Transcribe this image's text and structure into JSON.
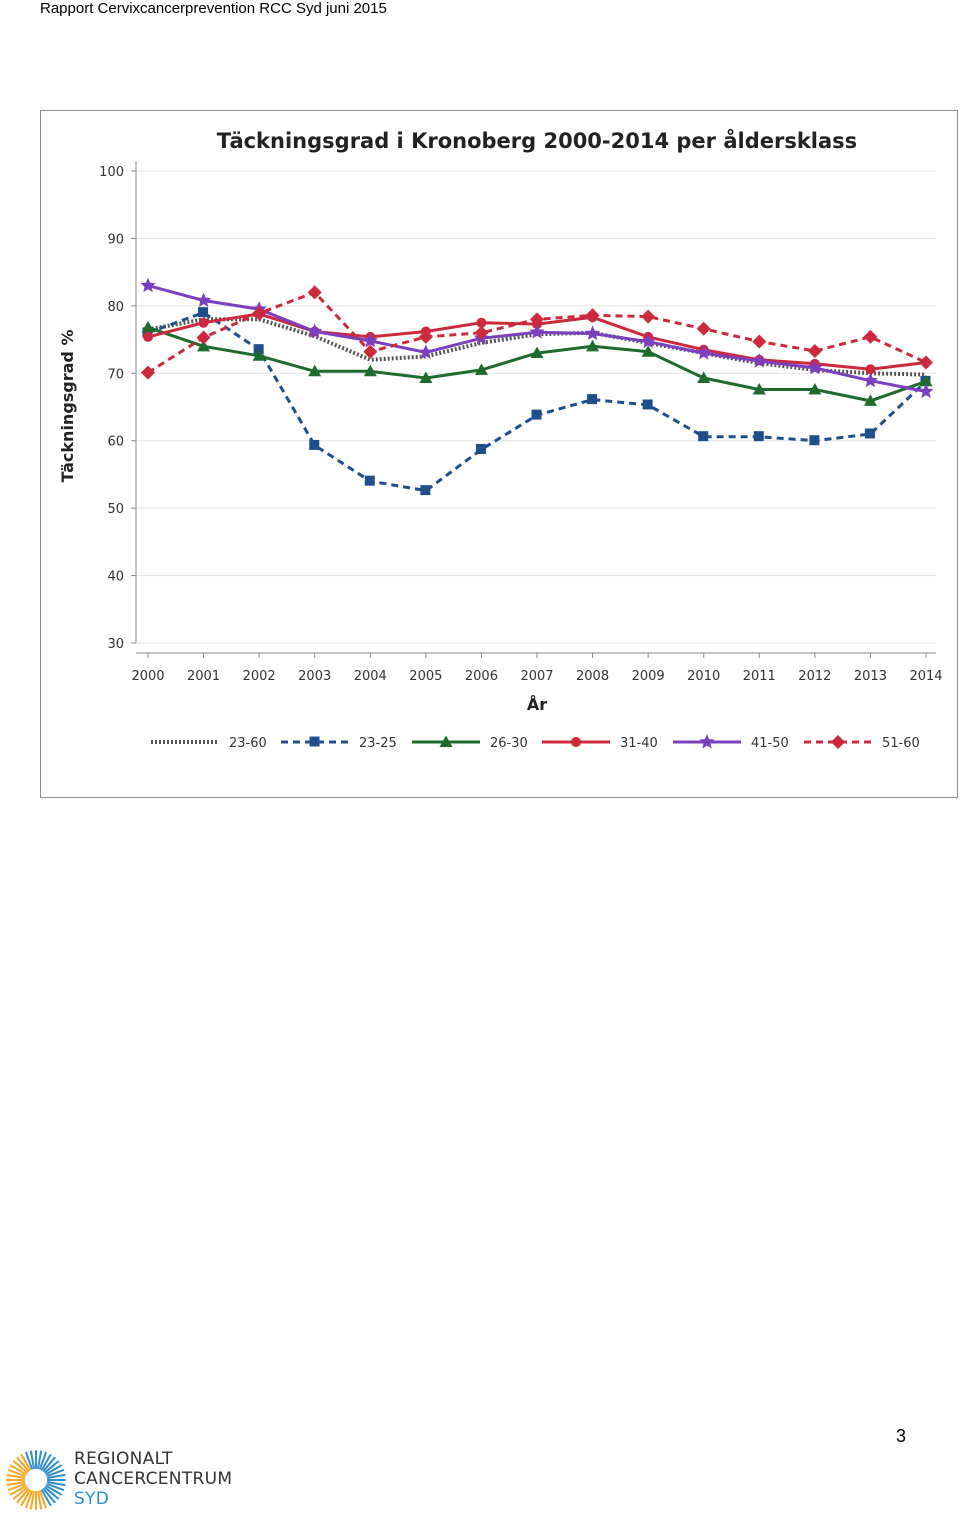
{
  "header": {
    "text": "Rapport Cervixcancerprevention RCC Syd juni 2015"
  },
  "page_number": "3",
  "logo": {
    "line1": "REGIONALT",
    "line2": "CANCERCENTRUM",
    "line3": "SYD",
    "colors": [
      "#f5a623",
      "#2f8fd0"
    ]
  },
  "chart_data": {
    "type": "line",
    "title": "Täckningsgrad i Kronoberg 2000-2014 per åldersklass",
    "xlabel": "År",
    "ylabel": "Täckningsgrad %",
    "ylim": [
      30,
      100
    ],
    "yticks": [
      100,
      90,
      80,
      70,
      60,
      50,
      40,
      30
    ],
    "grid": true,
    "legend_position": "bottom",
    "x": [
      "2000",
      "2001",
      "2002",
      "2003",
      "2004",
      "2005",
      "2006",
      "2007",
      "2008",
      "2009",
      "2010",
      "2011",
      "2012",
      "2013",
      "2014"
    ],
    "series": [
      {
        "name": "23-60",
        "color": "#555555",
        "style": "dotted",
        "marker": "none",
        "values": [
          76.5,
          78.0,
          78.0,
          75.5,
          72.0,
          72.5,
          74.5,
          75.8,
          76.0,
          74.5,
          73.0,
          71.5,
          70.5,
          70.0,
          69.8
        ]
      },
      {
        "name": "23-25",
        "color": "#1f4e8c",
        "style": "dashed",
        "marker": "square",
        "values": [
          76.0,
          79.0,
          73.5,
          59.3,
          54.0,
          52.6,
          58.7,
          63.8,
          66.1,
          65.3,
          60.6,
          60.6,
          60.0,
          61.0,
          68.8
        ]
      },
      {
        "name": "26-30",
        "color": "#1e6b2e",
        "style": "solid",
        "marker": "triangle",
        "values": [
          76.8,
          74.0,
          72.6,
          70.3,
          70.3,
          69.3,
          70.5,
          73.0,
          74.0,
          73.2,
          69.3,
          67.6,
          67.6,
          65.9,
          68.8
        ]
      },
      {
        "name": "31-40",
        "color": "#cc2a3c",
        "style": "solid",
        "marker": "circle",
        "values": [
          75.4,
          77.5,
          78.8,
          76.2,
          75.4,
          76.2,
          77.5,
          77.3,
          78.3,
          75.4,
          73.5,
          72.0,
          71.4,
          70.6,
          71.6
        ]
      },
      {
        "name": "41-50",
        "color": "#7b3fbf",
        "style": "solid",
        "marker": "star",
        "values": [
          83.0,
          80.8,
          79.5,
          76.2,
          74.8,
          73.1,
          75.2,
          76.1,
          75.9,
          74.7,
          73.0,
          71.8,
          70.8,
          68.9,
          67.3
        ]
      },
      {
        "name": "51-60",
        "color": "#cc2a3c",
        "style": "dashed",
        "marker": "diamond",
        "values": [
          70.1,
          75.3,
          78.9,
          82.0,
          73.2,
          75.4,
          76.0,
          78.0,
          78.6,
          78.4,
          76.6,
          74.7,
          73.3,
          75.4,
          71.6
        ]
      }
    ]
  }
}
